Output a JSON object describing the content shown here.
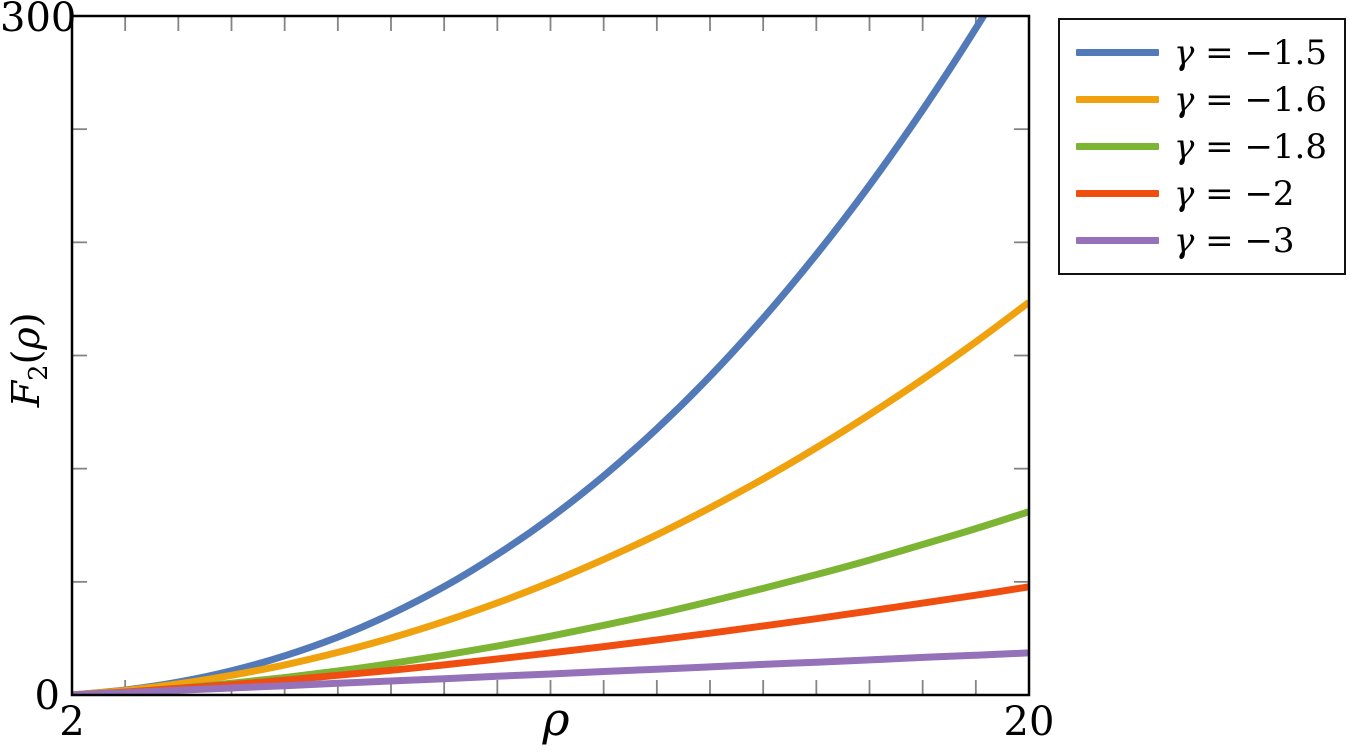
{
  "labels": {
    "y_max": "300",
    "y_min": "0",
    "x_min": "2",
    "x_max": "20",
    "x_axis_title": "ρ",
    "y_axis_title": {
      "base": "F",
      "sub": "2",
      "open": "(",
      "var": "ρ",
      "close": ")"
    }
  },
  "legend": {
    "items": [
      {
        "var": "γ",
        "eq": " = ",
        "value": "−1.5"
      },
      {
        "var": "γ",
        "eq": " = ",
        "value": "−1.6"
      },
      {
        "var": "γ",
        "eq": " = ",
        "value": "−1.8"
      },
      {
        "var": "γ",
        "eq": " = ",
        "value": "−2"
      },
      {
        "var": "γ",
        "eq": " = ",
        "value": "−3"
      }
    ]
  },
  "colors": {
    "axis": "#000000",
    "ticks": "#848484",
    "legend_border": "#111111"
  },
  "chart_data": {
    "type": "line",
    "title": "",
    "xlabel": "ρ",
    "ylabel": "F_2(ρ)",
    "xlim": [
      2,
      20
    ],
    "ylim": [
      0,
      300
    ],
    "x_tick_step": 1,
    "y_tick_step": 50,
    "x_tick_labels_shown": [
      "2",
      "20"
    ],
    "y_tick_labels_shown": [
      "0",
      "300"
    ],
    "grid": false,
    "legend_position": "outside top-right",
    "x": [
      2,
      3,
      4,
      5,
      6,
      7,
      8,
      9,
      10,
      11,
      12,
      13,
      14,
      15,
      16,
      17,
      18,
      19,
      20
    ],
    "series": [
      {
        "name": "γ = −1.5",
        "gamma": -1.5,
        "color": "#537AB8",
        "values": [
          0,
          2.2,
          5.7,
          10.7,
          17.3,
          25.6,
          35.8,
          47.9,
          62.1,
          78.3,
          96.8,
          117.6,
          140.8,
          166.5,
          194.6,
          225.2,
          258.5,
          294.5,
          333.3
        ]
      },
      {
        "name": "γ = −1.6",
        "gamma": -1.6,
        "color": "#F0A10E",
        "values": [
          0,
          2.0,
          4.9,
          8.7,
          13.3,
          18.8,
          25.2,
          32.5,
          40.7,
          49.8,
          59.9,
          70.8,
          82.7,
          95.5,
          109.2,
          123.9,
          139.5,
          156.0,
          173.5
        ]
      },
      {
        "name": "γ = −1.8",
        "gamma": -1.8,
        "color": "#7CB433",
        "values": [
          0,
          1.3,
          3.0,
          5.2,
          7.7,
          10.6,
          13.9,
          17.6,
          21.6,
          26.0,
          30.8,
          35.8,
          41.3,
          47.1,
          53.2,
          59.6,
          66.5,
          73.5,
          81.0
        ]
      },
      {
        "name": "γ = −2",
        "gamma": -2,
        "color": "#F04E10",
        "values": [
          0,
          1.3,
          2.9,
          4.6,
          6.5,
          8.7,
          10.9,
          13.3,
          15.9,
          18.6,
          21.4,
          24.3,
          27.3,
          30.5,
          33.7,
          37.1,
          40.6,
          44.1,
          47.8
        ]
      },
      {
        "name": "γ = −3",
        "gamma": -3,
        "color": "#9571BA",
        "values": [
          0,
          1.0,
          2.1,
          3.1,
          4.1,
          5.2,
          6.2,
          7.2,
          8.3,
          9.3,
          10.4,
          11.4,
          12.4,
          13.5,
          14.5,
          15.5,
          16.6,
          17.6,
          18.6
        ]
      }
    ]
  }
}
